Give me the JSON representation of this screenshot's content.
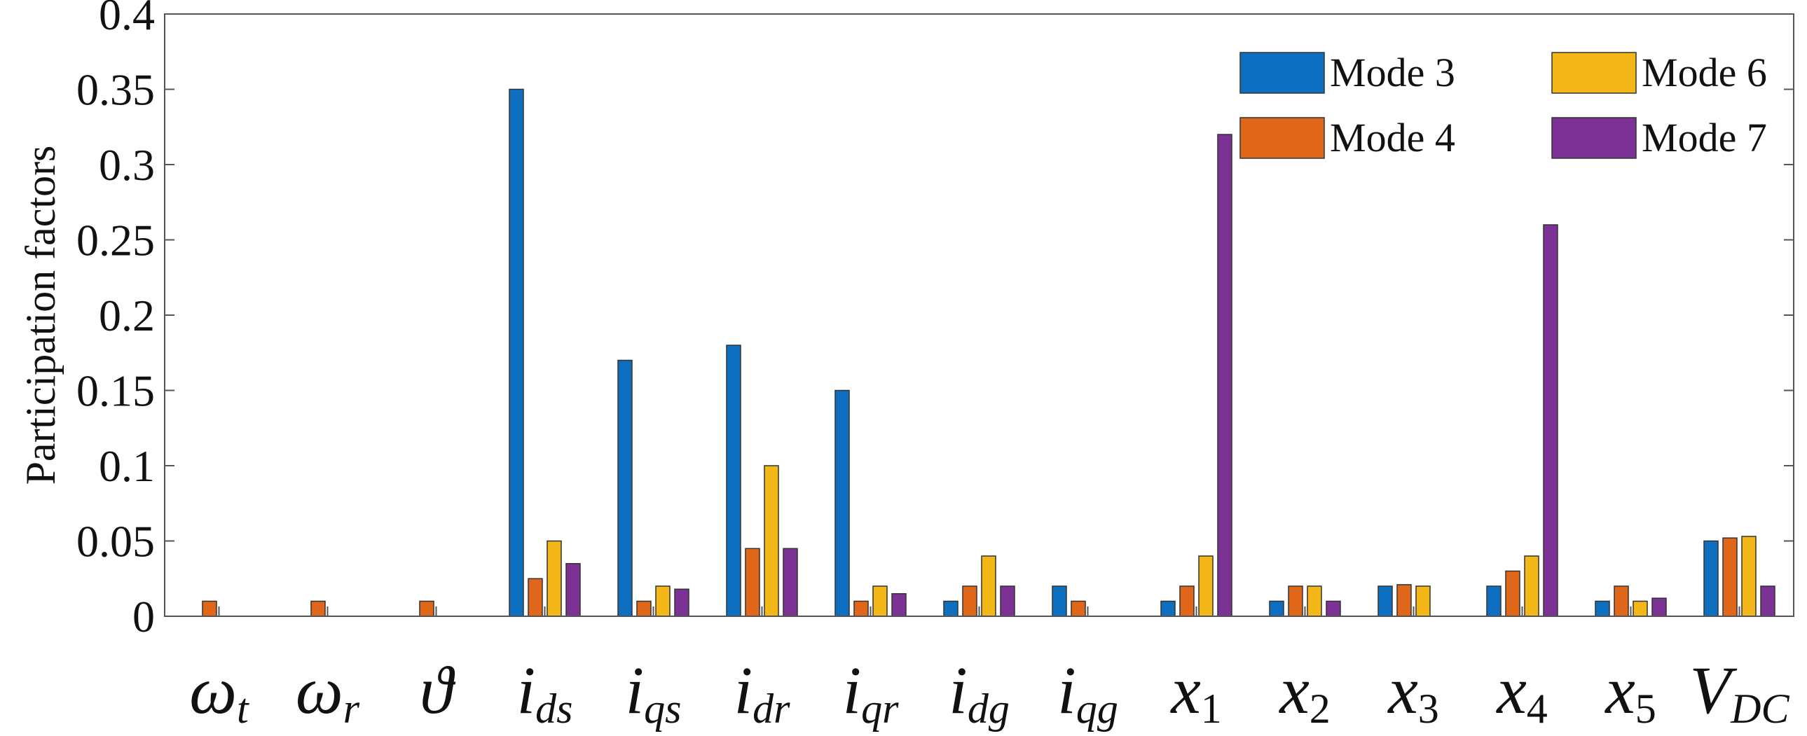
{
  "chart_data": {
    "type": "bar",
    "ylabel": "Participation factors",
    "ylim": [
      0,
      0.4
    ],
    "yticks": [
      "0",
      "0.05",
      "0.1",
      "0.15",
      "0.2",
      "0.25",
      "0.3",
      "0.35",
      "0.4"
    ],
    "yticks_values": [
      0,
      0.05,
      0.1,
      0.15,
      0.2,
      0.25,
      0.3,
      0.35,
      0.4
    ],
    "categories": [
      {
        "main": "ω",
        "sub": "t"
      },
      {
        "main": "ω",
        "sub": "r"
      },
      {
        "main": "ϑ",
        "sub": ""
      },
      {
        "main": "i",
        "sub": "ds"
      },
      {
        "main": "i",
        "sub": "qs"
      },
      {
        "main": "i",
        "sub": "dr"
      },
      {
        "main": "i",
        "sub": "qr"
      },
      {
        "main": "i",
        "sub": "dg"
      },
      {
        "main": "i",
        "sub": "qg"
      },
      {
        "main": "x",
        "sub": "1"
      },
      {
        "main": "x",
        "sub": "2"
      },
      {
        "main": "x",
        "sub": "3"
      },
      {
        "main": "x",
        "sub": "4"
      },
      {
        "main": "x",
        "sub": "5"
      },
      {
        "main": "V",
        "sub": "DC"
      }
    ],
    "series": [
      {
        "name": "Mode 3",
        "color": "#0E6FC1",
        "values": [
          0,
          0,
          0,
          0.35,
          0.17,
          0.18,
          0.15,
          0.01,
          0.02,
          0.01,
          0.01,
          0.02,
          0.02,
          0.01,
          0.05
        ]
      },
      {
        "name": "Mode 4",
        "color": "#E0661A",
        "values": [
          0.01,
          0.01,
          0.01,
          0.025,
          0.01,
          0.045,
          0.01,
          0.02,
          0.01,
          0.02,
          0.02,
          0.021,
          0.03,
          0.02,
          0.052
        ]
      },
      {
        "name": "Mode 6",
        "color": "#F3B817",
        "values": [
          0,
          0,
          0,
          0.05,
          0.02,
          0.1,
          0.02,
          0.04,
          0,
          0.04,
          0.02,
          0.02,
          0.04,
          0.01,
          0.053
        ]
      },
      {
        "name": "Mode 7",
        "color": "#7B3294",
        "values": [
          0,
          0,
          0,
          0.035,
          0.018,
          0.045,
          0.015,
          0.02,
          0,
          0.32,
          0.01,
          0,
          0.26,
          0.012,
          0.02
        ]
      }
    ],
    "legend_position": "top-right",
    "grid": false
  }
}
